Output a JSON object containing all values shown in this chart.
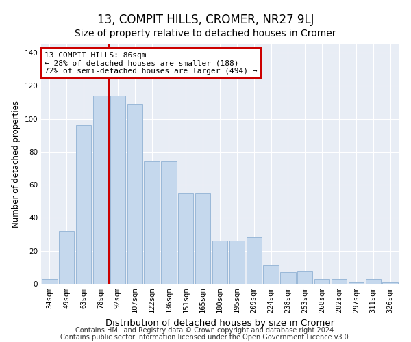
{
  "title": "13, COMPIT HILLS, CROMER, NR27 9LJ",
  "subtitle": "Size of property relative to detached houses in Cromer",
  "xlabel": "Distribution of detached houses by size in Cromer",
  "ylabel": "Number of detached properties",
  "categories": [
    "34sqm",
    "49sqm",
    "63sqm",
    "78sqm",
    "92sqm",
    "107sqm",
    "122sqm",
    "136sqm",
    "151sqm",
    "165sqm",
    "180sqm",
    "195sqm",
    "209sqm",
    "224sqm",
    "238sqm",
    "253sqm",
    "268sqm",
    "282sqm",
    "297sqm",
    "311sqm",
    "326sqm"
  ],
  "values": [
    3,
    32,
    96,
    114,
    114,
    109,
    74,
    74,
    55,
    55,
    26,
    26,
    28,
    11,
    7,
    8,
    3,
    3,
    1,
    3,
    1
  ],
  "bar_color": "#c5d8ed",
  "bar_edge_color": "#9ab8d8",
  "background_color": "#e8edf5",
  "vline_color": "#cc0000",
  "vline_position": 3.5,
  "annotation_text": "13 COMPIT HILLS: 86sqm\n← 28% of detached houses are smaller (188)\n72% of semi-detached houses are larger (494) →",
  "annotation_box_facecolor": "#ffffff",
  "annotation_box_edgecolor": "#cc0000",
  "ylim": [
    0,
    145
  ],
  "yticks": [
    0,
    20,
    40,
    60,
    80,
    100,
    120,
    140
  ],
  "footer1": "Contains HM Land Registry data © Crown copyright and database right 2024.",
  "footer2": "Contains public sector information licensed under the Open Government Licence v3.0.",
  "title_fontsize": 12,
  "subtitle_fontsize": 10,
  "xlabel_fontsize": 9.5,
  "ylabel_fontsize": 8.5,
  "tick_fontsize": 7.5,
  "annotation_fontsize": 8,
  "footer_fontsize": 7
}
